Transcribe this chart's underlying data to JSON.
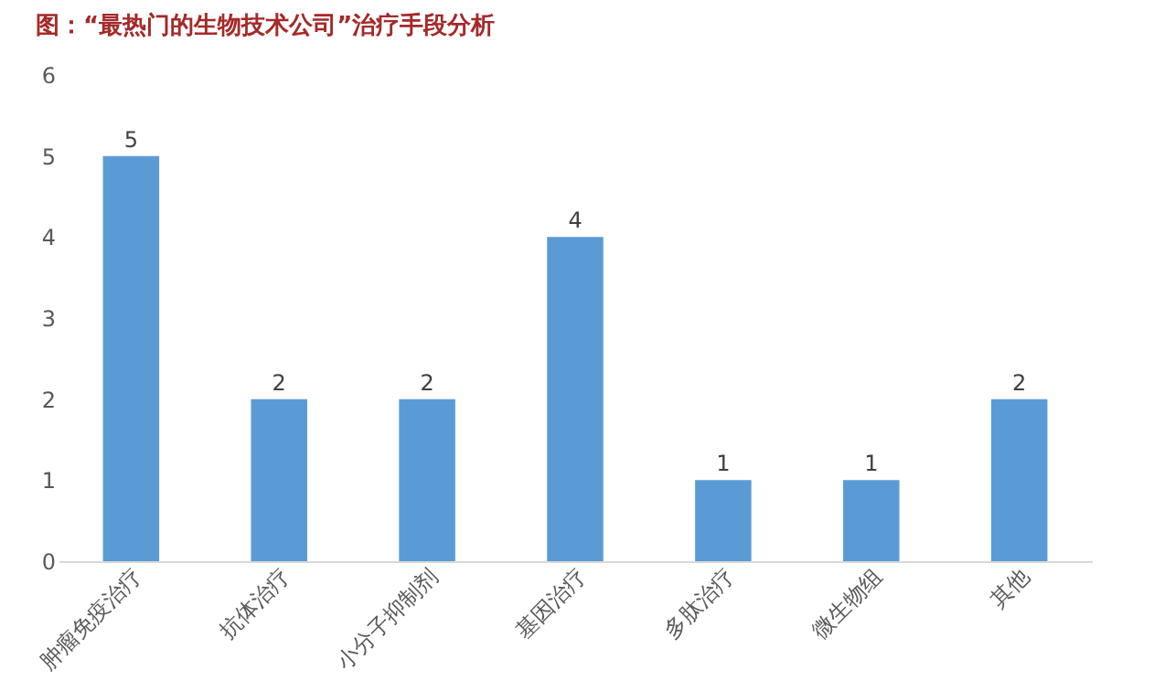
{
  "chart_data": {
    "type": "bar",
    "title": "图：“最热门的生物技术公司”治疗手段分析",
    "categories": [
      "肿瘤免疫治疗",
      "抗体治疗",
      "小分子抑制剂",
      "基因治疗",
      "多肽治疗",
      "微生物组",
      "其他"
    ],
    "values": [
      5,
      2,
      2,
      4,
      1,
      1,
      2
    ],
    "color": "#5b9bd5",
    "ylim": [
      0,
      6
    ],
    "yticks": [
      0,
      1,
      2,
      3,
      4,
      5,
      6
    ],
    "grid": false,
    "data_labels": true
  }
}
